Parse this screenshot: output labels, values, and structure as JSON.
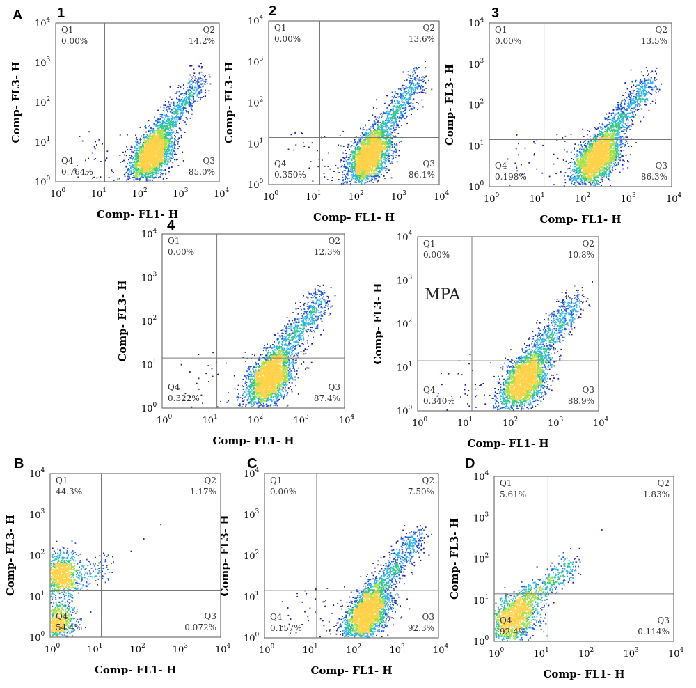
{
  "palette": [
    "#1e1ea0",
    "#1f5bd6",
    "#2fb3e8",
    "#34c98a",
    "#a6e04a",
    "#ffd24a"
  ],
  "chart_data": [
    {
      "type": "scatter",
      "panel": "A",
      "number": "1",
      "xlabel": "Comp- FL1- H",
      "ylabel": "Comp- FL3- H",
      "x_ticks": [
        "10",
        "10",
        "10",
        "10",
        "10"
      ],
      "x_exps": [
        "0",
        "1",
        "2",
        "3",
        "4"
      ],
      "y_ticks": [
        "10",
        "10",
        "10",
        "10",
        "10"
      ],
      "y_exps": [
        "0",
        "1",
        "2",
        "3",
        "4"
      ],
      "xlim": [
        0,
        4
      ],
      "ylim": [
        0,
        4
      ],
      "scale": "log",
      "gate": {
        "x": 1.2,
        "y": 1.15
      },
      "quadrants": [
        {
          "label": "Q1",
          "value": "0.00%"
        },
        {
          "label": "Q2",
          "value": "14.2%"
        },
        {
          "label": "Q3",
          "value": "85.0%"
        },
        {
          "label": "Q4",
          "value": "0.764%"
        }
      ],
      "annotation": "",
      "population": "diagonal"
    },
    {
      "type": "scatter",
      "panel": "",
      "number": "2",
      "xlabel": "Comp- FL1- H",
      "ylabel": "Comp- FL3- H",
      "x_ticks": [
        "10",
        "10",
        "10",
        "10",
        "10"
      ],
      "x_exps": [
        "0",
        "1",
        "2",
        "3",
        "4"
      ],
      "y_ticks": [
        "10",
        "10",
        "10",
        "10",
        "10"
      ],
      "y_exps": [
        "0",
        "1",
        "2",
        "3",
        "4"
      ],
      "xlim": [
        0,
        4
      ],
      "ylim": [
        0,
        4
      ],
      "scale": "log",
      "gate": {
        "x": 1.2,
        "y": 1.15
      },
      "quadrants": [
        {
          "label": "Q1",
          "value": "0.00%"
        },
        {
          "label": "Q2",
          "value": "13.6%"
        },
        {
          "label": "Q3",
          "value": "86.1%"
        },
        {
          "label": "Q4",
          "value": "0.350%"
        }
      ],
      "annotation": "",
      "population": "diagonal"
    },
    {
      "type": "scatter",
      "panel": "",
      "number": "3",
      "xlabel": "Comp- FL1- H",
      "ylabel": "Comp- FL3- H",
      "x_ticks": [
        "10",
        "10",
        "10",
        "10",
        "10"
      ],
      "x_exps": [
        "0",
        "1",
        "2",
        "3",
        "4"
      ],
      "y_ticks": [
        "10",
        "10",
        "10",
        "10",
        "10"
      ],
      "y_exps": [
        "0",
        "1",
        "2",
        "3",
        "4"
      ],
      "xlim": [
        0,
        4
      ],
      "ylim": [
        0,
        4
      ],
      "scale": "log",
      "gate": {
        "x": 1.2,
        "y": 1.15
      },
      "quadrants": [
        {
          "label": "Q1",
          "value": "0.00%"
        },
        {
          "label": "Q2",
          "value": "13.5%"
        },
        {
          "label": "Q3",
          "value": "86.3%"
        },
        {
          "label": "Q4",
          "value": "0.198%"
        }
      ],
      "annotation": "",
      "population": "diagonal"
    },
    {
      "type": "scatter",
      "panel": "",
      "number": "4",
      "xlabel": "Comp- FL1- H",
      "ylabel": "Comp- FL3- H",
      "x_ticks": [
        "10",
        "10",
        "10",
        "10",
        "10"
      ],
      "x_exps": [
        "0",
        "1",
        "2",
        "3",
        "4"
      ],
      "y_ticks": [
        "10",
        "10",
        "10",
        "10",
        "10"
      ],
      "y_exps": [
        "0",
        "1",
        "2",
        "3",
        "4"
      ],
      "xlim": [
        0,
        4
      ],
      "ylim": [
        0,
        4
      ],
      "scale": "log",
      "gate": {
        "x": 1.2,
        "y": 1.15
      },
      "quadrants": [
        {
          "label": "Q1",
          "value": "0.00%"
        },
        {
          "label": "Q2",
          "value": "12.3%"
        },
        {
          "label": "Q3",
          "value": "87.4%"
        },
        {
          "label": "Q4",
          "value": "0.322%"
        }
      ],
      "annotation": "",
      "population": "diagonal"
    },
    {
      "type": "scatter",
      "panel": "",
      "number": "",
      "xlabel": "Comp- FL1- H",
      "ylabel": "Comp- FL3- H",
      "x_ticks": [
        "10",
        "10",
        "10",
        "10",
        "10"
      ],
      "x_exps": [
        "0",
        "1",
        "2",
        "3",
        "4"
      ],
      "y_ticks": [
        "10",
        "10",
        "10",
        "10",
        "10"
      ],
      "y_exps": [
        "0",
        "1",
        "2",
        "3",
        "4"
      ],
      "xlim": [
        0,
        4
      ],
      "ylim": [
        0,
        4
      ],
      "scale": "log",
      "gate": {
        "x": 1.2,
        "y": 1.15
      },
      "quadrants": [
        {
          "label": "Q1",
          "value": "0.00%"
        },
        {
          "label": "Q2",
          "value": "10.8%"
        },
        {
          "label": "Q3",
          "value": "88.9%"
        },
        {
          "label": "Q4",
          "value": "0.340%"
        }
      ],
      "annotation": "MPA",
      "population": "diagonal"
    },
    {
      "type": "scatter",
      "panel": "B",
      "number": "",
      "xlabel": "Comp- FL1- H",
      "ylabel": "Comp- FL3- H",
      "x_ticks": [
        "10",
        "10",
        "10",
        "10",
        "10"
      ],
      "x_exps": [
        "0",
        "1",
        "2",
        "3",
        "4"
      ],
      "y_ticks": [
        "10",
        "10",
        "10",
        "10",
        "10"
      ],
      "y_exps": [
        "0",
        "1",
        "2",
        "3",
        "4"
      ],
      "xlim": [
        0,
        4
      ],
      "ylim": [
        0,
        4
      ],
      "scale": "log",
      "gate": {
        "x": 1.2,
        "y": 1.15
      },
      "quadrants": [
        {
          "label": "Q1",
          "value": "44.3%"
        },
        {
          "label": "Q2",
          "value": "1.17%"
        },
        {
          "label": "Q3",
          "value": "0.072%"
        },
        {
          "label": "Q4",
          "value": "54.4%"
        }
      ],
      "annotation": "",
      "population": "pi_only"
    },
    {
      "type": "scatter",
      "panel": "C",
      "number": "",
      "xlabel": "Comp- FL1- H",
      "ylabel": "Comp- FL3- H",
      "x_ticks": [
        "10",
        "10",
        "10",
        "10",
        "10"
      ],
      "x_exps": [
        "0",
        "1",
        "2",
        "3",
        "4"
      ],
      "y_ticks": [
        "10",
        "10",
        "10",
        "10",
        "10"
      ],
      "y_exps": [
        "0",
        "1",
        "2",
        "3",
        "4"
      ],
      "xlim": [
        0,
        4
      ],
      "ylim": [
        0,
        4
      ],
      "scale": "log",
      "gate": {
        "x": 1.2,
        "y": 1.15
      },
      "quadrants": [
        {
          "label": "Q1",
          "value": "0.00%"
        },
        {
          "label": "Q2",
          "value": "7.50%"
        },
        {
          "label": "Q3",
          "value": "92.3%"
        },
        {
          "label": "Q4",
          "value": "0.157%"
        }
      ],
      "annotation": "",
      "population": "diagonal_low"
    },
    {
      "type": "scatter",
      "panel": "D",
      "number": "",
      "xlabel": "Comp- FL1- H",
      "ylabel": "Comp- FL3- H",
      "x_ticks": [
        "10",
        "10",
        "10",
        "10",
        "10"
      ],
      "x_exps": [
        "0",
        "1",
        "2",
        "3",
        "4"
      ],
      "y_ticks": [
        "10",
        "10",
        "10",
        "10",
        "10"
      ],
      "y_exps": [
        "0",
        "1",
        "2",
        "3",
        "4"
      ],
      "xlim": [
        0,
        4
      ],
      "ylim": [
        0,
        4
      ],
      "scale": "log",
      "gate": {
        "x": 1.2,
        "y": 1.15
      },
      "quadrants": [
        {
          "label": "Q1",
          "value": "5.61%"
        },
        {
          "label": "Q2",
          "value": "1.83%"
        },
        {
          "label": "Q3",
          "value": "0.114%"
        },
        {
          "label": "Q4",
          "value": "92.4%"
        }
      ],
      "annotation": "",
      "population": "unstained"
    }
  ]
}
